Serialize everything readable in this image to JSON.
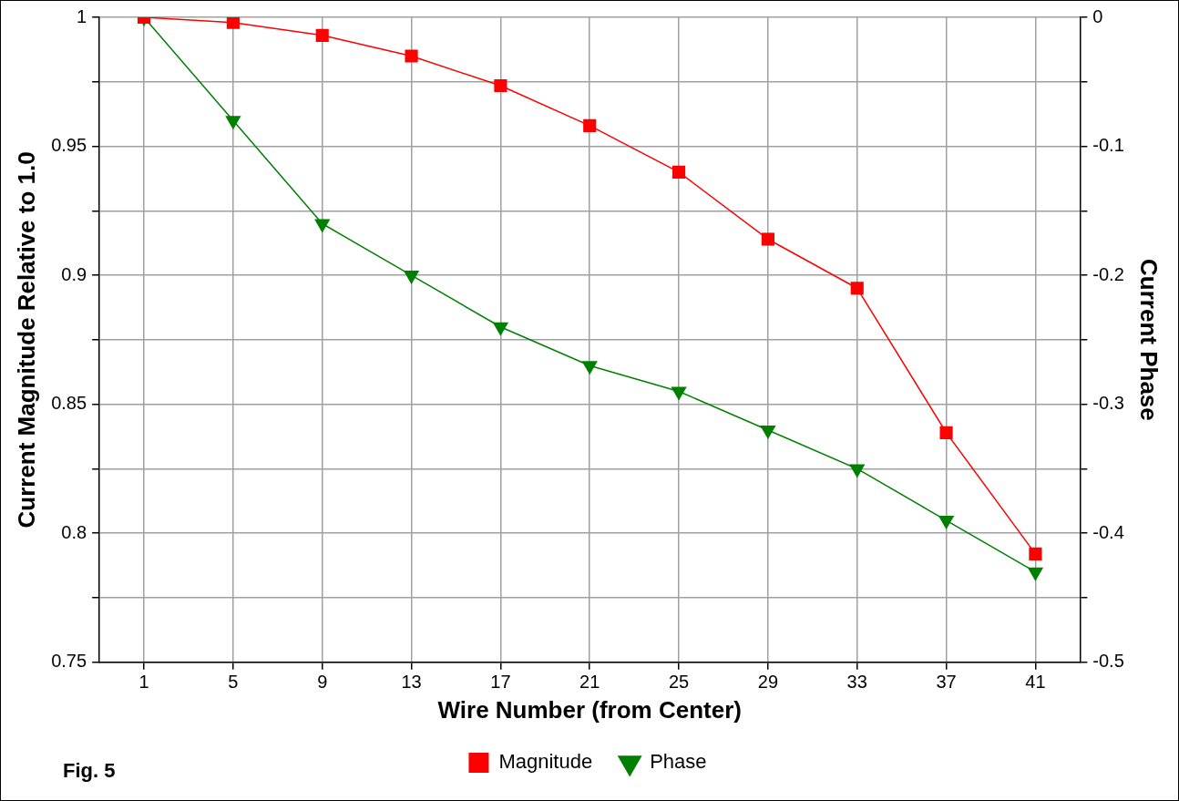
{
  "chart_data": {
    "type": "line",
    "xlabel": "Wire Number (from Center)",
    "ylabel": "Current Magnitude Relative to 1.0",
    "y2label": "Current Phase",
    "categories": [
      "1",
      "5",
      "9",
      "13",
      "17",
      "21",
      "25",
      "29",
      "33",
      "37",
      "41"
    ],
    "series": [
      {
        "name": "Magnitude",
        "color": "#ff0000",
        "marker": "square",
        "values": [
          1.0,
          0.998,
          0.993,
          0.985,
          0.9735,
          0.958,
          0.94,
          0.914,
          0.895,
          0.839,
          0.792
        ]
      },
      {
        "name": "Phase",
        "color": "#008000",
        "marker": "triangle",
        "axis": "y2",
        "values": [
          0,
          -0.08,
          -0.16,
          -0.2,
          -0.24,
          -0.27,
          -0.29,
          -0.32,
          -0.35,
          -0.39,
          -0.43
        ]
      }
    ],
    "ylim": [
      0.75,
      1
    ],
    "yticks": [
      0.75,
      {
        "value": 0.775,
        "label": null
      },
      0.8,
      {
        "value": 0.825,
        "label": null
      },
      0.85,
      {
        "value": 0.875,
        "label": null
      },
      0.9,
      {
        "value": 0.925,
        "label": null
      },
      0.95,
      {
        "value": 0.975,
        "label": null
      },
      1
    ],
    "y2lim": [
      -0.5,
      0
    ],
    "y2ticks": [
      -0.5,
      {
        "value": -0.45,
        "label": null
      },
      -0.4,
      {
        "value": -0.35,
        "label": null
      },
      -0.3,
      {
        "value": -0.25,
        "label": null
      },
      -0.2,
      {
        "value": -0.15,
        "label": null
      },
      -0.1,
      {
        "value": -0.05,
        "label": null
      },
      0
    ],
    "grid": true,
    "legend": "bottom",
    "line_style": "solid",
    "annotations": [
      "Fig. 5"
    ]
  }
}
